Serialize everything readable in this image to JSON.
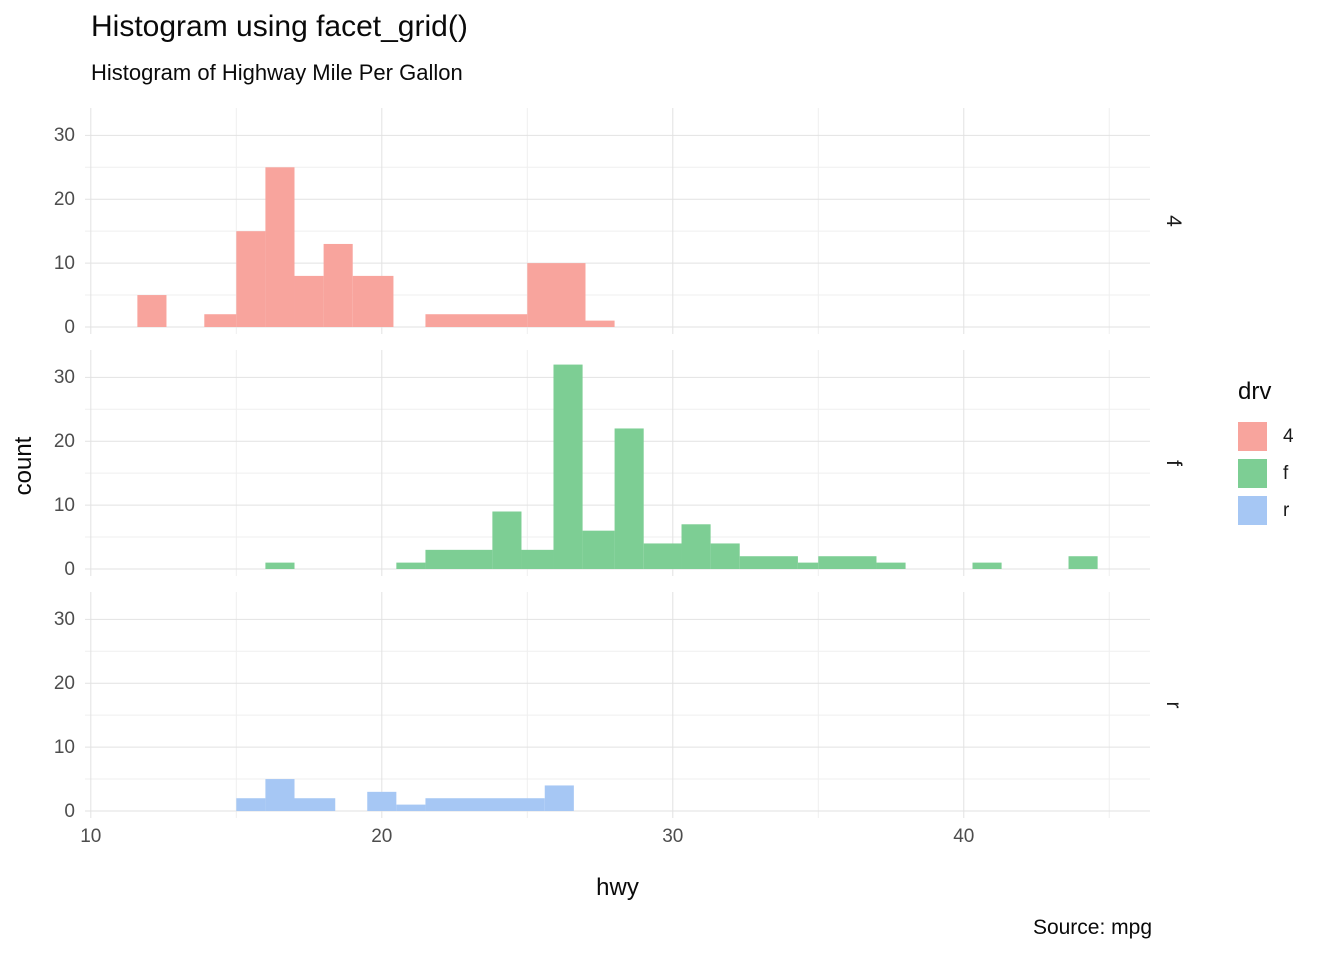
{
  "title": "Histogram using facet_grid()",
  "subtitle": "Histogram of Highway Mile Per Gallon",
  "source": "Source: mpg",
  "chart_data": {
    "type": "bar",
    "chart_kind": "faceted_histogram",
    "title": "Histogram using facet_grid()",
    "subtitle": "Histogram of Highway Mile Per Gallon",
    "xlabel": "hwy",
    "ylabel": "count",
    "caption": "Source: mpg",
    "xlim": [
      9.8,
      46.4
    ],
    "ylim": [
      0,
      33.5
    ],
    "x_ticks": [
      10,
      20,
      30,
      40
    ],
    "x_minor_ticks": [
      15,
      25,
      35,
      45
    ],
    "y_ticks": [
      0,
      10,
      20,
      30
    ],
    "y_minor_ticks": [
      5,
      15,
      25
    ],
    "grid": "on",
    "legend_position": "right",
    "legend": {
      "title": "drv",
      "entries": [
        {
          "label": "4",
          "color": "#F8A49D"
        },
        {
          "label": "f",
          "color": "#7DCE94"
        },
        {
          "label": "r",
          "color": "#A6C7F4"
        }
      ]
    },
    "grid_major_color": "#E2E2E2",
    "grid_minor_color": "#EFEFEF",
    "facets": [
      {
        "label": "4",
        "color": "#F8A49D",
        "bars": [
          {
            "x0": 11.6,
            "x1": 12.6,
            "count": 5
          },
          {
            "x0": 13.9,
            "x1": 15.0,
            "count": 2
          },
          {
            "x0": 15.0,
            "x1": 16.0,
            "count": 15
          },
          {
            "x0": 16.0,
            "x1": 17.0,
            "count": 25
          },
          {
            "x0": 17.0,
            "x1": 18.0,
            "count": 8
          },
          {
            "x0": 18.0,
            "x1": 19.0,
            "count": 13
          },
          {
            "x0": 19.0,
            "x1": 20.4,
            "count": 8
          },
          {
            "x0": 21.5,
            "x1": 25.0,
            "count": 2
          },
          {
            "x0": 25.0,
            "x1": 27.0,
            "count": 10
          },
          {
            "x0": 27.0,
            "x1": 28.0,
            "count": 1
          }
        ]
      },
      {
        "label": "f",
        "color": "#7DCE94",
        "bars": [
          {
            "x0": 16.0,
            "x1": 17.0,
            "count": 1
          },
          {
            "x0": 20.5,
            "x1": 21.5,
            "count": 1
          },
          {
            "x0": 21.5,
            "x1": 23.8,
            "count": 3
          },
          {
            "x0": 23.8,
            "x1": 24.8,
            "count": 9
          },
          {
            "x0": 24.8,
            "x1": 25.9,
            "count": 3
          },
          {
            "x0": 25.9,
            "x1": 26.9,
            "count": 32
          },
          {
            "x0": 26.9,
            "x1": 28.0,
            "count": 6
          },
          {
            "x0": 28.0,
            "x1": 29.0,
            "count": 22
          },
          {
            "x0": 29.0,
            "x1": 30.3,
            "count": 4
          },
          {
            "x0": 30.3,
            "x1": 31.3,
            "count": 7
          },
          {
            "x0": 31.3,
            "x1": 32.3,
            "count": 4
          },
          {
            "x0": 32.3,
            "x1": 34.3,
            "count": 2
          },
          {
            "x0": 34.3,
            "x1": 35.0,
            "count": 1
          },
          {
            "x0": 35.0,
            "x1": 37.0,
            "count": 2
          },
          {
            "x0": 37.0,
            "x1": 38.0,
            "count": 1
          },
          {
            "x0": 40.3,
            "x1": 41.3,
            "count": 1
          },
          {
            "x0": 43.6,
            "x1": 44.6,
            "count": 2
          }
        ]
      },
      {
        "label": "r",
        "color": "#A6C7F4",
        "bars": [
          {
            "x0": 15.0,
            "x1": 16.0,
            "count": 2
          },
          {
            "x0": 16.0,
            "x1": 17.0,
            "count": 5
          },
          {
            "x0": 17.0,
            "x1": 18.4,
            "count": 2
          },
          {
            "x0": 19.5,
            "x1": 20.5,
            "count": 3
          },
          {
            "x0": 20.5,
            "x1": 21.5,
            "count": 1
          },
          {
            "x0": 21.5,
            "x1": 25.6,
            "count": 2
          },
          {
            "x0": 25.6,
            "x1": 26.6,
            "count": 4
          }
        ]
      }
    ]
  }
}
